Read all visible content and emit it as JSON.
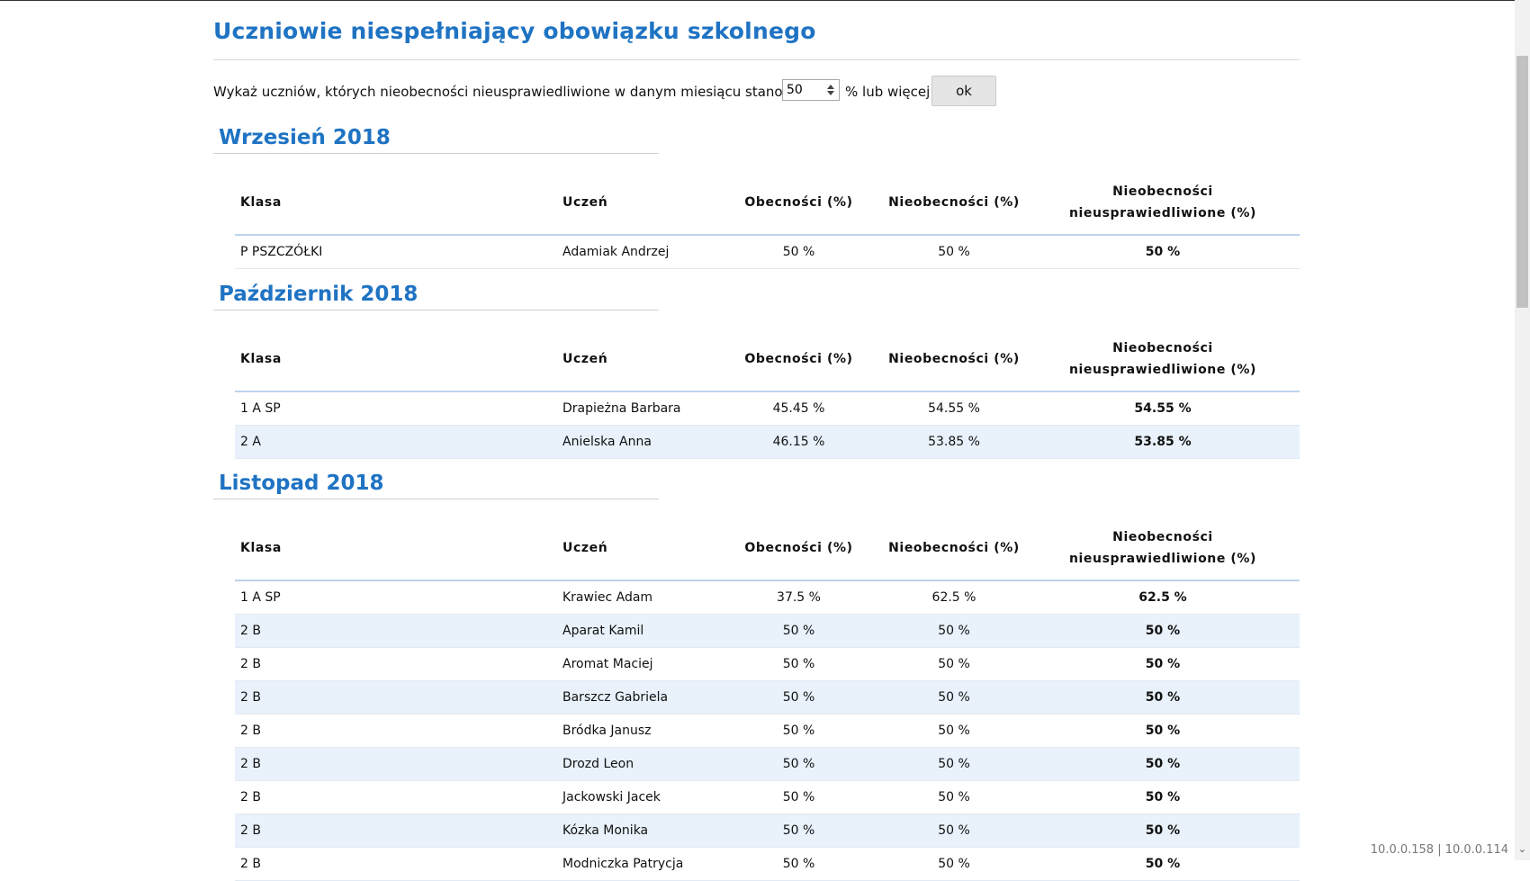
{
  "page": {
    "title": "Uczniowie niespełniający obowiązku szkolnego"
  },
  "filter": {
    "prefix": "Wykaż uczniów, których nieobecności nieusprawiedliwione w danym miesiącu stanowią",
    "value": "50",
    "suffix": "% lub więcej",
    "button_label": "ok"
  },
  "table_headers": {
    "klasa": "Klasa",
    "uczen": "Uczeń",
    "obecnosci": "Obecności (%)",
    "nieobecnosci": "Nieobecności (%)",
    "nieusp_line1": "Nieobecności",
    "nieusp_line2": "nieusprawiedliwione (%)"
  },
  "sections": [
    {
      "title": "Wrzesień 2018",
      "rows": [
        {
          "klasa": "P PSZCZÓŁKI",
          "uczen": "Adamiak Andrzej",
          "ob": "50 %",
          "nie": "50 %",
          "nu": "50 %"
        }
      ]
    },
    {
      "title": "Październik 2018",
      "rows": [
        {
          "klasa": "1 A SP",
          "uczen": "Drapieżna Barbara",
          "ob": "45.45 %",
          "nie": "54.55 %",
          "nu": "54.55 %"
        },
        {
          "klasa": "2 A",
          "uczen": "Anielska Anna",
          "ob": "46.15 %",
          "nie": "53.85 %",
          "nu": "53.85 %"
        }
      ]
    },
    {
      "title": "Listopad 2018",
      "rows": [
        {
          "klasa": "1 A SP",
          "uczen": "Krawiec Adam",
          "ob": "37.5 %",
          "nie": "62.5 %",
          "nu": "62.5 %"
        },
        {
          "klasa": "2 B",
          "uczen": "Aparat Kamil",
          "ob": "50 %",
          "nie": "50 %",
          "nu": "50 %"
        },
        {
          "klasa": "2 B",
          "uczen": "Aromat Maciej",
          "ob": "50 %",
          "nie": "50 %",
          "nu": "50 %"
        },
        {
          "klasa": "2 B",
          "uczen": "Barszcz Gabriela",
          "ob": "50 %",
          "nie": "50 %",
          "nu": "50 %"
        },
        {
          "klasa": "2 B",
          "uczen": "Bródka Janusz",
          "ob": "50 %",
          "nie": "50 %",
          "nu": "50 %"
        },
        {
          "klasa": "2 B",
          "uczen": "Drozd Leon",
          "ob": "50 %",
          "nie": "50 %",
          "nu": "50 %"
        },
        {
          "klasa": "2 B",
          "uczen": "Jackowski Jacek",
          "ob": "50 %",
          "nie": "50 %",
          "nu": "50 %"
        },
        {
          "klasa": "2 B",
          "uczen": "Kózka Monika",
          "ob": "50 %",
          "nie": "50 %",
          "nu": "50 %"
        },
        {
          "klasa": "2 B",
          "uczen": "Modniczka Patrycja",
          "ob": "50 %",
          "nie": "50 %",
          "nu": "50 %"
        }
      ]
    }
  ],
  "status": {
    "text": "10.0.0.158 | 10.0.0.114"
  },
  "icons": {
    "spinner": "spin-updown-icon",
    "scroll": "chevron-down-icon"
  }
}
